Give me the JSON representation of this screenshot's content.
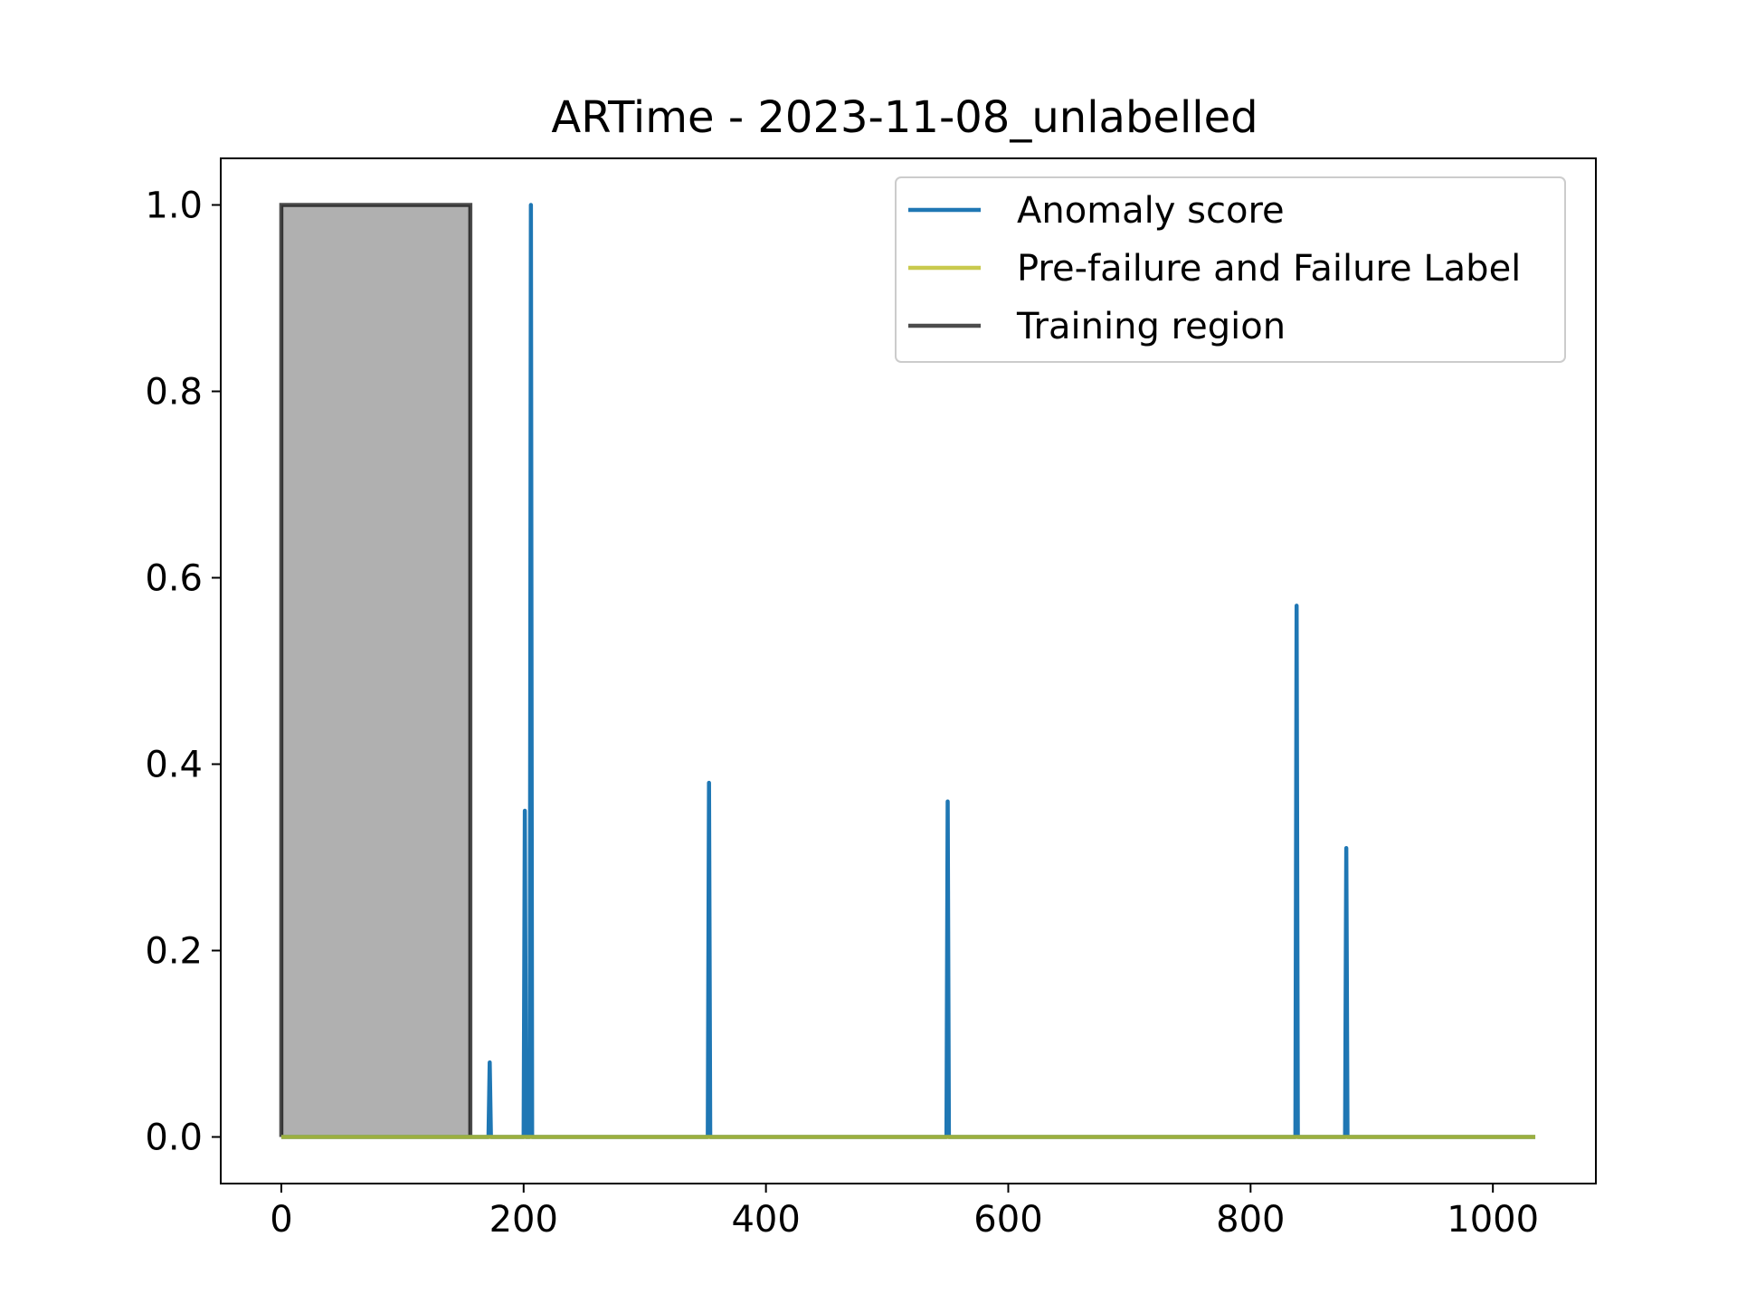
{
  "chart_data": {
    "type": "line",
    "title": "ARTime - 2023-11-08_unlabelled",
    "xlabel": "",
    "ylabel": "",
    "xlim": [
      -50,
      1085
    ],
    "ylim": [
      -0.05,
      1.05
    ],
    "x_ticks": [
      0,
      200,
      400,
      600,
      800,
      1000
    ],
    "x_tick_labels": [
      "0",
      "200",
      "400",
      "600",
      "800",
      "1000"
    ],
    "y_ticks": [
      0.0,
      0.2,
      0.4,
      0.6,
      0.8,
      1.0
    ],
    "y_tick_labels": [
      "0.0",
      "0.2",
      "0.4",
      "0.6",
      "0.8",
      "1.0"
    ],
    "grid": false,
    "legend_position": "top-right",
    "series": [
      {
        "name": "Anomaly score",
        "color": "#1f77b4",
        "spikes": [
          {
            "x": 172,
            "y": 0.08
          },
          {
            "x": 201,
            "y": 0.35
          },
          {
            "x": 206,
            "y": 1.0
          },
          {
            "x": 353,
            "y": 0.38
          },
          {
            "x": 550,
            "y": 0.36
          },
          {
            "x": 838,
            "y": 0.57
          },
          {
            "x": 879,
            "y": 0.31
          }
        ],
        "baseline": 0.0,
        "x_range": [
          0,
          1035
        ]
      },
      {
        "name": "Pre-failure and Failure Label",
        "color": "#bcbd22",
        "x": [
          0,
          1035
        ],
        "y": [
          0,
          0
        ]
      },
      {
        "name": "Training region",
        "color": "#000000",
        "x": [
          0,
          0,
          156,
          156
        ],
        "y": [
          0,
          1,
          1,
          0
        ]
      }
    ],
    "training_region": {
      "x_start": 0,
      "x_end": 156,
      "fill_color": "#b0b0b0"
    }
  }
}
